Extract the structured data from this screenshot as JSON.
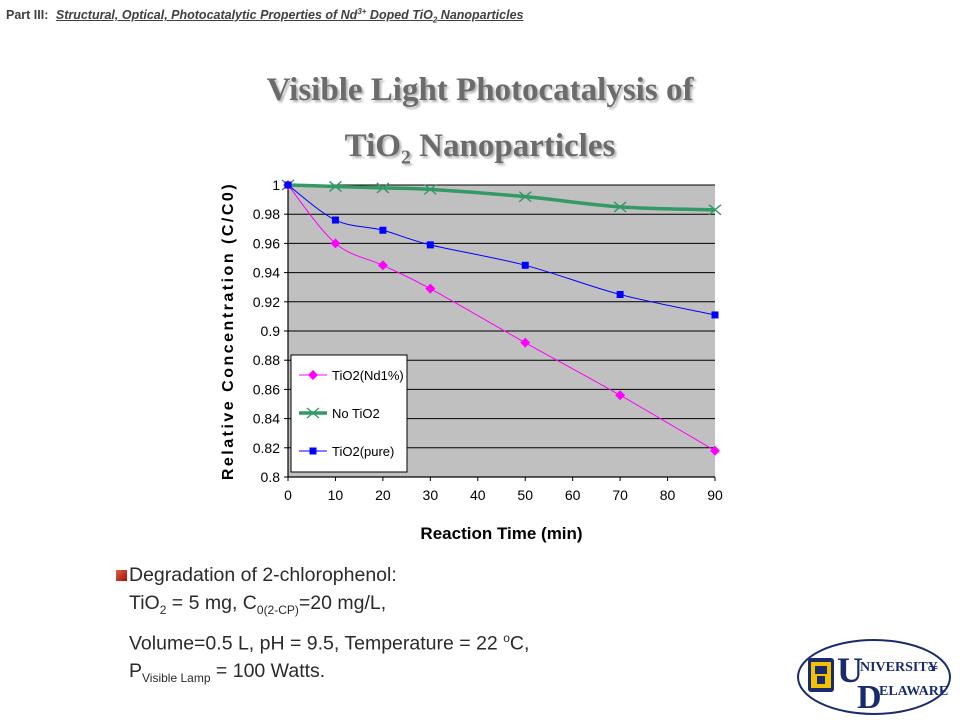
{
  "header": {
    "part": "Part III:",
    "topic_pre": "Structural, Optical, Photocatalytic Properties of Nd",
    "topic_sup": "3+",
    "topic_mid": " Doped TiO",
    "topic_sub": "2",
    "topic_post": " Nanoparticles"
  },
  "title": {
    "line1": "Visible Light Photocatalysis of",
    "line2_pre": "TiO",
    "line2_sub": "2",
    "line2_post": " Nanoparticles"
  },
  "chart_data": {
    "type": "line",
    "xlabel": "Reaction Time (min)",
    "ylabel": "Relative Concentration (C/C0)",
    "xlim": [
      0,
      90
    ],
    "ylim": [
      0.8,
      1.0
    ],
    "xticks": [
      "0",
      "10",
      "20",
      "30",
      "40",
      "50",
      "60",
      "70",
      "80",
      "90"
    ],
    "yticks": [
      "0.8",
      "0.82",
      "0.84",
      "0.86",
      "0.88",
      "0.9",
      "0.92",
      "0.94",
      "0.96",
      "0.98",
      "1"
    ],
    "grid": "horizontal",
    "legend_position": "bottom-left",
    "series": [
      {
        "name": "TiO2(Nd1%)",
        "color": "#ff00ff",
        "marker": "diamond",
        "x": [
          0,
          10,
          20,
          30,
          50,
          70,
          90
        ],
        "y": [
          1.0,
          0.96,
          0.945,
          0.929,
          0.892,
          0.856,
          0.818
        ]
      },
      {
        "name": "No TiO2",
        "color": "#339966",
        "marker": "x",
        "x": [
          0,
          10,
          20,
          30,
          50,
          70,
          90
        ],
        "y": [
          1.0,
          0.999,
          0.998,
          0.997,
          0.992,
          0.985,
          0.983
        ]
      },
      {
        "name": "TiO2(pure)",
        "color": "#0000ff",
        "marker": "square",
        "x": [
          0,
          10,
          20,
          30,
          50,
          70,
          90
        ],
        "y": [
          1.0,
          0.976,
          0.969,
          0.959,
          0.945,
          0.925,
          0.911
        ]
      }
    ]
  },
  "notes": {
    "line1": "Degradation of 2-chlorophenol:",
    "line2_a": "TiO",
    "line2_sub1": "2",
    "line2_b": " = 5 mg, C",
    "line2_sub2": "0(2-CP)",
    "line2_c": "=20 mg/L,",
    "line3_a": "Volume=0.5 L, pH = 9.5, Temperature = 22 ",
    "line3_sup": "o",
    "line3_b": "C,",
    "line4_a": "P",
    "line4_sub": "Visible Lamp",
    "line4_b": " = 100 Watts."
  },
  "logo": {
    "line1": "NIVERSITY",
    "of": "OF",
    "line2": "ELAWARE",
    "initial1": "U",
    "initial2": "D"
  }
}
